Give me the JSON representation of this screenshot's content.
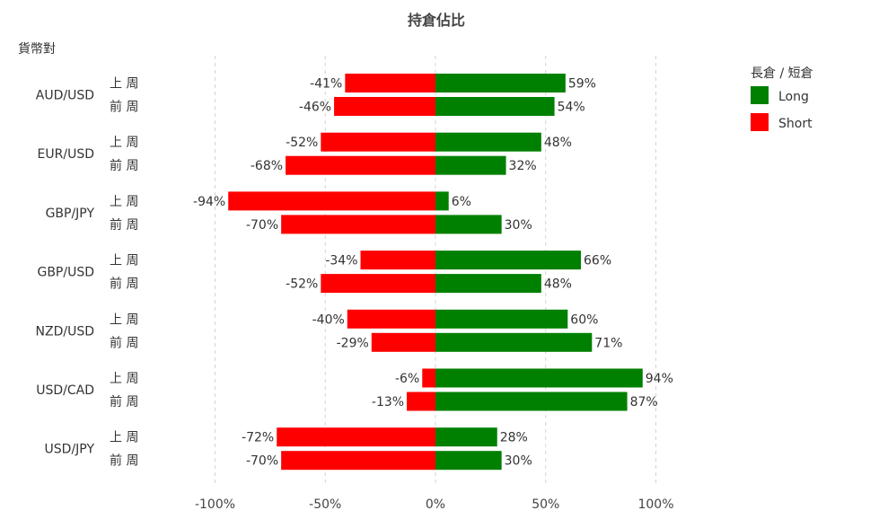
{
  "chart_data": {
    "type": "bar",
    "orientation": "horizontal",
    "title": "持倉佔比",
    "ylabel": "貨幣對",
    "legend": {
      "title": "長倉 / 短倉",
      "position": "top-right",
      "items": [
        {
          "label": "Long",
          "color": "#008000"
        },
        {
          "label": "Short",
          "color": "#ff0000"
        }
      ]
    },
    "xlim": [
      -100,
      100
    ],
    "xticks": [
      -100,
      -50,
      0,
      50,
      100
    ],
    "xtick_labels": [
      "-100%",
      "-50%",
      "0%",
      "50%",
      "100%"
    ],
    "grid": true,
    "colors": {
      "long": "#008000",
      "short": "#ff0000",
      "grid": "#d4d4d4"
    },
    "groups": [
      {
        "pair": "AUD/USD",
        "rows": [
          {
            "period": "上 周",
            "short": -41,
            "long": 59
          },
          {
            "period": "前 周",
            "short": -46,
            "long": 54
          }
        ]
      },
      {
        "pair": "EUR/USD",
        "rows": [
          {
            "period": "上 周",
            "short": -52,
            "long": 48
          },
          {
            "period": "前 周",
            "short": -68,
            "long": 32
          }
        ]
      },
      {
        "pair": "GBP/JPY",
        "rows": [
          {
            "period": "上 周",
            "short": -94,
            "long": 6
          },
          {
            "period": "前 周",
            "short": -70,
            "long": 30
          }
        ]
      },
      {
        "pair": "GBP/USD",
        "rows": [
          {
            "period": "上 周",
            "short": -34,
            "long": 66
          },
          {
            "period": "前 周",
            "short": -52,
            "long": 48
          }
        ]
      },
      {
        "pair": "NZD/USD",
        "rows": [
          {
            "period": "上 周",
            "short": -40,
            "long": 60
          },
          {
            "period": "前 周",
            "short": -29,
            "long": 71
          }
        ]
      },
      {
        "pair": "USD/CAD",
        "rows": [
          {
            "period": "上 周",
            "short": -6,
            "long": 94
          },
          {
            "period": "前 周",
            "short": -13,
            "long": 87
          }
        ]
      },
      {
        "pair": "USD/JPY",
        "rows": [
          {
            "period": "上 周",
            "short": -72,
            "long": 28
          },
          {
            "period": "前 周",
            "short": -70,
            "long": 30
          }
        ]
      }
    ]
  }
}
